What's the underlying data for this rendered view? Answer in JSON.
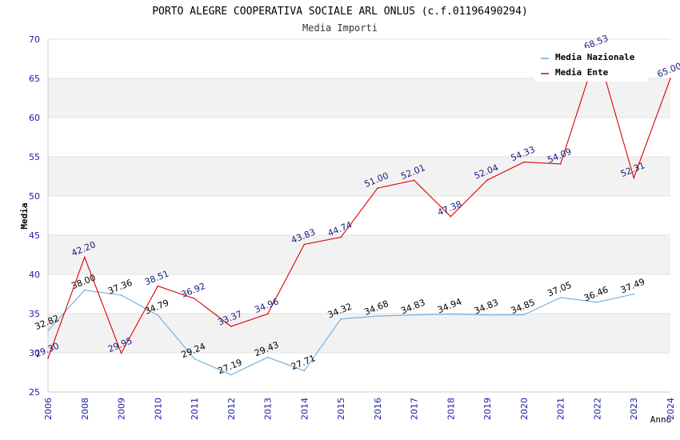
{
  "chart_data": {
    "type": "line",
    "title": "PORTO ALEGRE COOPERATIVA SOCIALE ARL ONLUS (c.f.01196490294)",
    "subtitle": "Media Importi",
    "xlabel": "Anno",
    "ylabel": "Media",
    "ylim": [
      25,
      70
    ],
    "yticks": [
      25,
      30,
      35,
      40,
      45,
      50,
      55,
      60,
      65,
      70
    ],
    "categories": [
      "2006",
      "2008",
      "2009",
      "2010",
      "2011",
      "2012",
      "2013",
      "2014",
      "2015",
      "2016",
      "2017",
      "2018",
      "2019",
      "2020",
      "2021",
      "2022",
      "2023",
      "2024"
    ],
    "grid": true,
    "legend_position": "top-right",
    "colors": {
      "nazionale": "#6aaee0",
      "ente": "#dd0000",
      "band": "#f2f2f2"
    },
    "series": [
      {
        "name": "Media Nazionale",
        "values": [
          32.82,
          38.0,
          37.36,
          34.79,
          29.24,
          27.19,
          29.43,
          27.71,
          34.32,
          34.68,
          34.83,
          34.94,
          34.83,
          34.85,
          37.05,
          36.46,
          37.49,
          null
        ],
        "labels": [
          "32.82",
          "38.00",
          "37.36",
          "34.79",
          "29.24",
          "27.19",
          "29.43",
          "27.71",
          "34.32",
          "34.68",
          "34.83",
          "34.94",
          "34.83",
          "34.85",
          "37.05",
          "36.46",
          "37.49",
          null
        ]
      },
      {
        "name": "Media Ente",
        "values": [
          29.3,
          42.2,
          29.95,
          38.51,
          36.92,
          33.37,
          34.96,
          43.83,
          44.74,
          51.0,
          52.01,
          47.38,
          52.04,
          54.33,
          54.09,
          68.53,
          52.31,
          65.0
        ],
        "labels": [
          "29.30",
          "42.20",
          "29.95",
          "38.51",
          "36.92",
          "33.37",
          "34.96",
          "43.83",
          "44.74",
          "51.00",
          "52.01",
          "47.38",
          "52.04",
          "54.33",
          "54.09",
          "68.53",
          "52.31",
          "65.00"
        ]
      }
    ]
  }
}
